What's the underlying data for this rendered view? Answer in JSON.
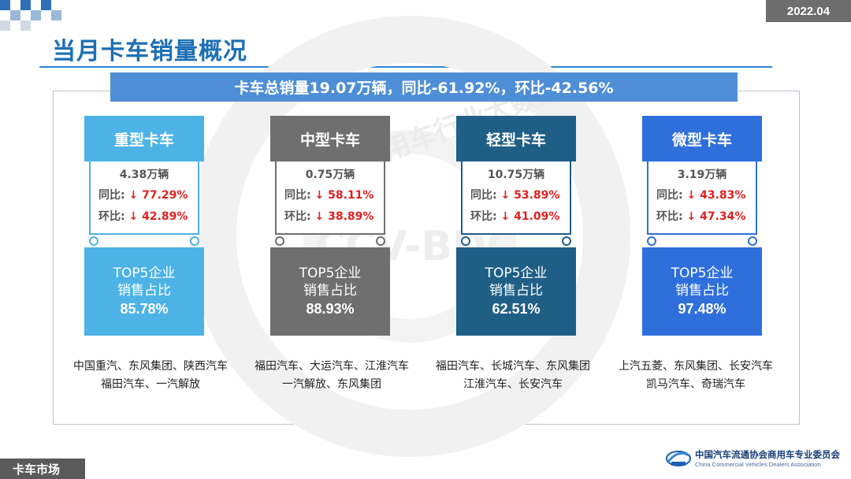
{
  "header": {
    "date": "2022.04",
    "title": "当月卡车销量概况"
  },
  "summary": "卡车总销量19.07万辆，同比-61.92%，环比-42.56%",
  "categories": [
    {
      "name": "重型卡车",
      "total": "4.38万辆",
      "yoy_label": "同比:",
      "yoy_value": "↓ 77.29%",
      "mom_label": "环比:",
      "mom_value": "↓ 42.89%",
      "share_l1": "TOP5企业",
      "share_l2": "销售占比",
      "share_value": "85.78%",
      "color": "#4db3e6",
      "brands_l1": "中国重汽、东风集团、陕西汽车",
      "brands_l2": "福田汽车、一汽解放"
    },
    {
      "name": "中型卡车",
      "total": "0.75万辆",
      "yoy_label": "同比:",
      "yoy_value": "↓ 58.11%",
      "mom_label": "环比:",
      "mom_value": "↓ 38.89%",
      "share_l1": "TOP5企业",
      "share_l2": "销售占比",
      "share_value": "88.93%",
      "color": "#6f6f6f",
      "brands_l1": "福田汽车、大运汽车、江淮汽车",
      "brands_l2": "一汽解放、东风集团"
    },
    {
      "name": "轻型卡车",
      "total": "10.75万辆",
      "yoy_label": "同比:",
      "yoy_value": "↓ 53.89%",
      "mom_label": "环比:",
      "mom_value": "↓ 41.09%",
      "share_l1": "TOP5企业",
      "share_l2": "销售占比",
      "share_value": "62.51%",
      "color": "#1f5f86",
      "brands_l1": "福田汽车、长城汽车、东风集团",
      "brands_l2": "江淮汽车、长安汽车"
    },
    {
      "name": "微型卡车",
      "total": "3.19万辆",
      "yoy_label": "同比:",
      "yoy_value": "↓ 43.83%",
      "mom_label": "环比:",
      "mom_value": "↓ 47.34%",
      "share_l1": "TOP5企业",
      "share_l2": "销售占比",
      "share_value": "97.48%",
      "color": "#2f6fdc",
      "brands_l1": "上汽五菱、东风集团、长安汽车",
      "brands_l2": "凯马汽车、奇瑞汽车"
    }
  ],
  "footer": {
    "section": "卡车市场",
    "org_cn": "中国汽车流通协会商用车专业委员会",
    "org_en": "China Commercial Vehicles Dealers Association"
  },
  "watermark": {
    "text_a": "商用车行业大数据",
    "text_b": "CCV-BDC"
  }
}
